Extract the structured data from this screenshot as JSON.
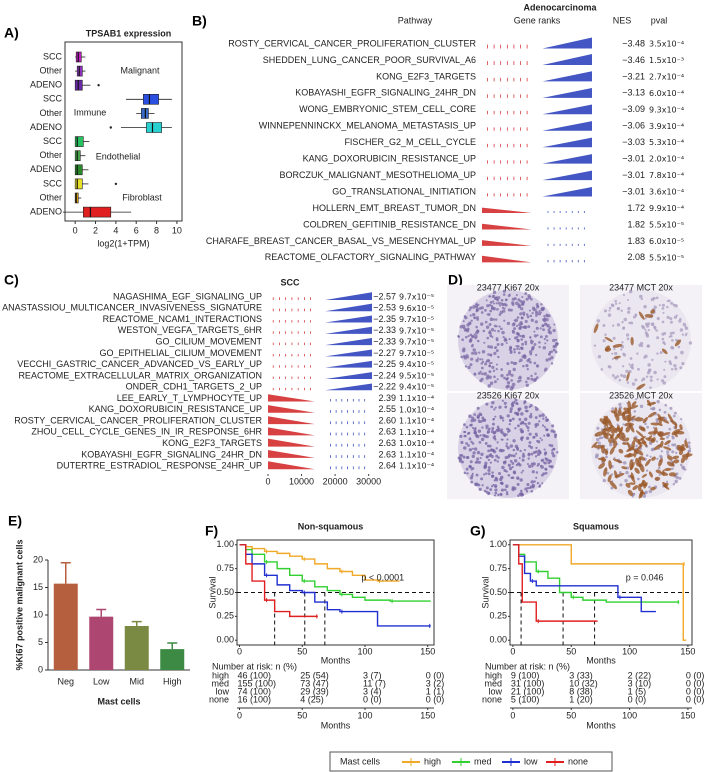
{
  "chart_data": [
    {
      "type": "box",
      "panel_label": "A)",
      "title": "TPSAB1 expression",
      "xlabel": "log2(1+TPM)",
      "xlim": [
        -1,
        10.5
      ],
      "xticks": [
        0,
        2,
        4,
        6,
        8,
        10
      ],
      "categories": [
        "SCC",
        "Other",
        "ADENO",
        "SCC",
        "Other",
        "ADENO",
        "SCC",
        "Other",
        "ADENO",
        "SCC",
        "Other",
        "ADENO"
      ],
      "groups": [
        "Malignant",
        "Immune",
        "Endothelial",
        "Fibroblast"
      ],
      "boxes": [
        {
          "whislo": 0,
          "q1": 0.1,
          "med": 0.3,
          "q3": 0.6,
          "whishi": 1.0,
          "color": "#c020c0",
          "fliers": []
        },
        {
          "whislo": 0,
          "q1": 0.2,
          "med": 0.4,
          "q3": 0.7,
          "whishi": 1.0,
          "color": "#9030c0",
          "fliers": []
        },
        {
          "whislo": 0,
          "q1": 0.0,
          "med": 0.3,
          "q3": 0.7,
          "whishi": 1.5,
          "color": "#6a2aa8",
          "fliers": [
            2.3
          ]
        },
        {
          "whislo": 5.0,
          "q1": 6.7,
          "med": 7.3,
          "q3": 8.2,
          "whishi": 9.5,
          "color": "#2a4ee0",
          "fliers": []
        },
        {
          "whislo": 6.0,
          "q1": 6.5,
          "med": 6.9,
          "q3": 7.2,
          "whishi": 7.8,
          "color": "#3a6ac8",
          "fliers": []
        },
        {
          "whislo": 4.5,
          "q1": 7.0,
          "med": 7.6,
          "q3": 8.5,
          "whishi": 9.5,
          "color": "#28d0d0",
          "fliers": [
            3.5
          ]
        },
        {
          "whislo": 0,
          "q1": 0.0,
          "med": 0.2,
          "q3": 0.8,
          "whishi": 1.4,
          "color": "#28c060",
          "fliers": []
        },
        {
          "whislo": 0,
          "q1": 0.0,
          "med": 0.2,
          "q3": 0.5,
          "whishi": 1.0,
          "color": "#48a848",
          "fliers": []
        },
        {
          "whislo": 0,
          "q1": 0.0,
          "med": 0.2,
          "q3": 0.7,
          "whishi": 1.3,
          "color": "#2a8a2a",
          "fliers": []
        },
        {
          "whislo": 0,
          "q1": 0.0,
          "med": 0.2,
          "q3": 0.7,
          "whishi": 1.3,
          "color": "#e6e028",
          "fliers": [
            4.0
          ]
        },
        {
          "whislo": 0,
          "q1": 0.0,
          "med": 0.1,
          "q3": 0.3,
          "whishi": 0.6,
          "color": "#e0a000",
          "fliers": []
        },
        {
          "whislo": -1.2,
          "q1": 0.8,
          "med": 1.5,
          "q3": 3.5,
          "whishi": 5.5,
          "color": "#e02020",
          "fliers": []
        }
      ]
    },
    {
      "type": "gsea",
      "panel_label": "B)",
      "title": "Adenocarcinoma",
      "headers": {
        "pathway": "Pathway",
        "ranks": "Gene ranks",
        "nes": "NES",
        "pval": "pval"
      },
      "neg_color": "#2338b8",
      "pos_color": "#d02020",
      "pathways": [
        "ROSTY_CERVICAL_CANCER_PROLIFERATION_CLUSTER",
        "SHEDDEN_LUNG_CANCER_POOR_SURVIVAL_A6",
        "KONG_E2F3_TARGETS",
        "KOBAYASHI_EGFR_SIGNALING_24HR_DN",
        "WONG_EMBRYONIC_STEM_CELL_CORE",
        "WINNEPENNINCKX_MELANOMA_METASTASIS_UP",
        "FISCHER_G2_M_CELL_CYCLE",
        "KANG_DOXORUBICIN_RESISTANCE_UP",
        "BORCZUK_MALIGNANT_MESOTHELIOMA_UP",
        "GO_TRANSLATIONAL_INITIATION",
        "HOLLERN_EMT_BREAST_TUMOR_DN",
        "COLDREN_GEFITINIB_RESISTANCE_DN",
        "CHARAFE_BREAST_CANCER_BASAL_VS_MESENCHYMAL_UP",
        "REACTOME_OLFACTORY_SIGNALING_PATHWAY"
      ],
      "nes": [
        -3.48,
        -3.46,
        -3.21,
        -3.13,
        -3.09,
        -3.06,
        -3.03,
        -3.01,
        -3.01,
        -3.01,
        1.72,
        1.82,
        1.83,
        2.08
      ],
      "nes_labels": [
        "−3.48",
        "−3.46",
        "−3.21",
        "−3.13",
        "−3.09",
        "−3.06",
        "−3.03",
        "−3.01",
        "−3.01",
        "−3.01",
        "1.72",
        "1.82",
        "1.83",
        "2.08"
      ],
      "pvals": [
        "3.5x10⁻⁴",
        "1.5x10⁻³",
        "2.7x10⁻⁴",
        "6.0x10⁻⁴",
        "9.3x10⁻⁴",
        "3.9x10⁻⁴",
        "5.3x10⁻⁴",
        "2.0x10⁻⁴",
        "7.8x10⁻⁴",
        "3.6x10⁻⁴",
        "9.9x10⁻⁴",
        "5.5x10⁻⁵",
        "6.0x10⁻⁵",
        "5.5x10⁻⁵"
      ]
    },
    {
      "type": "gsea",
      "panel_label": "C)",
      "title": "SCC",
      "neg_color": "#2338b8",
      "pos_color": "#d02020",
      "xlim": [
        0,
        31000
      ],
      "xticks": [
        0,
        10000,
        20000,
        30000
      ],
      "pathways": [
        "NAGASHIMA_EGF_SIGNALING_UP",
        "ANASTASSIOU_MULTICANCER_INVASIVENESS_SIGNATURE",
        "REACTOME_NCAM1_INTERACTIONS",
        "WESTON_VEGFA_TARGETS_6HR",
        "GO_CILIUM_MOVEMENT",
        "GO_EPITHELIAL_CILIUM_MOVEMENT",
        "VECCHI_GASTRIC_CANCER_ADVANCED_VS_EARLY_UP",
        "REACTOME_EXTRACELLULAR_MATRIX_ORGANIZATION",
        "ONDER_CDH1_TARGETS_2_UP",
        "LEE_EARLY_T_LYMPHOCYTE_UP",
        "KANG_DOXORUBICIN_RESISTANCE_UP",
        "ROSTY_CERVICAL_CANCER_PROLIFERATION_CLUSTER",
        "ZHOU_CELL_CYCLE_GENES_IN_IR_RESPONSE_6HR",
        "KONG_E2F3_TARGETS",
        "KOBAYASHI_EGFR_SIGNALING_24HR_DN",
        "DUTERTRE_ESTRADIOL_RESPONSE_24HR_UP"
      ],
      "nes": [
        -2.57,
        -2.53,
        -2.35,
        -2.33,
        -2.33,
        -2.27,
        -2.25,
        -2.24,
        -2.22,
        2.39,
        2.55,
        2.6,
        2.63,
        2.63,
        2.63,
        2.64
      ],
      "nes_labels": [
        "−2.57",
        "−2.53",
        "−2.35",
        "−2.33",
        "−2.33",
        "−2.27",
        "−2.25",
        "−2.24",
        "−2.22",
        "2.39",
        "2.55",
        "2.60",
        "2.63",
        "2.63",
        "2.63",
        "2.64"
      ],
      "pvals": [
        "9.7x10⁻⁵",
        "9.6x10⁻⁵",
        "9.7x10⁻⁵",
        "9.7x10⁻⁵",
        "9.7x10⁻⁵",
        "9.7x10⁻⁵",
        "9.4x10⁻⁵",
        "9.5x10⁻⁵",
        "9.4x10⁻⁵",
        "1.1x10⁻⁴",
        "1.0x10⁻⁴",
        "1.1x10⁻⁴",
        "1.1x10⁻⁴",
        "1.0x10⁻⁴",
        "1.1x10⁻⁴",
        "1.1x10⁻⁴"
      ]
    },
    {
      "type": "bar",
      "panel_label": "E)",
      "ylabel": "%Ki67 positive malignant cells",
      "xlabel": "Mast cells",
      "categories": [
        "Neg",
        "Low",
        "Mid",
        "High"
      ],
      "values": [
        15.7,
        9.7,
        8.0,
        3.8
      ],
      "errors": [
        3.8,
        1.3,
        0.8,
        1.1
      ],
      "colors": [
        "#b55f3e",
        "#ad4670",
        "#7b8a42",
        "#3d8a44"
      ],
      "ylim": [
        0,
        20
      ],
      "yticks": [
        0,
        5,
        10,
        15,
        20
      ]
    },
    {
      "type": "survival",
      "panel_label": "F)",
      "title": "Non-squamous",
      "p_label": "p < 0.0001",
      "ylabel": "Survival",
      "xlabel": "Months",
      "risk_title": "Number at risk: n (%)",
      "xlim": [
        -2,
        155
      ],
      "xticks": [
        0,
        50,
        100,
        150
      ],
      "ylim": [
        -0.05,
        1.05
      ],
      "yticks": [
        {
          "value": 0,
          "label": "0.00"
        },
        {
          "value": 0.25,
          "label": "0.25"
        },
        {
          "value": 0.5,
          "label": "0.50"
        },
        {
          "value": 0.75,
          "label": "0.75"
        },
        {
          "value": 1,
          "label": "1.00"
        }
      ],
      "median_line": 0.5,
      "medians": [
        28,
        52,
        68
      ],
      "series": [
        {
          "name": "high",
          "color": "#f0a828",
          "x": [
            0,
            5,
            10,
            20,
            30,
            40,
            50,
            60,
            70,
            80,
            90,
            100,
            110,
            125
          ],
          "values": [
            1,
            0.98,
            0.96,
            0.93,
            0.91,
            0.88,
            0.85,
            0.8,
            0.75,
            0.72,
            0.68,
            0.63,
            0.62,
            0.62
          ],
          "at_risk": [
            "46 (100)",
            "25 (54)",
            "3 (7)",
            "0 (0)"
          ]
        },
        {
          "name": "med",
          "color": "#30d030",
          "x": [
            0,
            5,
            10,
            20,
            30,
            40,
            50,
            60,
            70,
            80,
            90,
            100,
            120,
            150
          ],
          "values": [
            1,
            0.95,
            0.9,
            0.82,
            0.75,
            0.68,
            0.62,
            0.56,
            0.52,
            0.48,
            0.45,
            0.42,
            0.41,
            0.41
          ],
          "at_risk": [
            "155 (100)",
            "73 (47)",
            "11 (7)",
            "3 (2)"
          ]
        },
        {
          "name": "low",
          "color": "#2030d0",
          "x": [
            0,
            5,
            10,
            20,
            30,
            40,
            50,
            60,
            70,
            80,
            100,
            110,
            150
          ],
          "values": [
            1,
            0.9,
            0.8,
            0.68,
            0.58,
            0.52,
            0.5,
            0.4,
            0.32,
            0.3,
            0.3,
            0.15,
            0.15
          ],
          "at_risk": [
            "74 (100)",
            "29 (39)",
            "3 (4)",
            "1 (1)"
          ]
        },
        {
          "name": "none",
          "color": "#e02020",
          "x": [
            0,
            5,
            10,
            20,
            28,
            40,
            60
          ],
          "values": [
            1,
            0.8,
            0.62,
            0.42,
            0.3,
            0.25,
            0.25
          ],
          "at_risk": [
            "16 (100)",
            "4 (25)",
            "0 (0)",
            "0 (0)"
          ]
        }
      ]
    },
    {
      "type": "survival",
      "panel_label": "G)",
      "title": "Squamous",
      "p_label": "p = 0.046",
      "ylabel": "Survival",
      "xlabel": "Months",
      "risk_title": "Number at risk: n (%)",
      "xlim": [
        -2.5,
        153.5
      ],
      "xticks": [
        0,
        50,
        100,
        150
      ],
      "ylim": [
        -0.05,
        1.05
      ],
      "yticks": [
        {
          "value": 0,
          "label": "0.00"
        },
        {
          "value": 0.25,
          "label": "0.25"
        },
        {
          "value": 0.5,
          "label": "0.50"
        },
        {
          "value": 0.75,
          "label": "0.75"
        },
        {
          "value": 1,
          "label": "1.00"
        }
      ],
      "median_line": 0.5,
      "medians": [
        7,
        43,
        70
      ],
      "series": [
        {
          "name": "high",
          "color": "#f0a828",
          "x": [
            0,
            45,
            50,
            145,
            146
          ],
          "values": [
            1,
            1,
            0.8,
            0.8,
            0
          ],
          "at_risk": [
            "9 (100)",
            "3 (33)",
            "2 (22)",
            "0 (0)"
          ]
        },
        {
          "name": "med",
          "color": "#30d030",
          "x": [
            0,
            5,
            10,
            20,
            30,
            40,
            50,
            60,
            80,
            140
          ],
          "values": [
            1,
            0.9,
            0.82,
            0.72,
            0.65,
            0.5,
            0.45,
            0.42,
            0.4,
            0.4
          ],
          "at_risk": [
            "31 (100)",
            "10 (32)",
            "3 (10)",
            "0 (0)"
          ]
        },
        {
          "name": "low",
          "color": "#2030d0",
          "x": [
            0,
            5,
            10,
            15,
            20,
            70,
            90,
            110,
            120
          ],
          "values": [
            1,
            0.88,
            0.7,
            0.62,
            0.57,
            0.57,
            0.45,
            0.3,
            0.3
          ],
          "at_risk": [
            "21 (100)",
            "8 (38)",
            "1 (5)",
            "0 (0)"
          ]
        },
        {
          "name": "none",
          "color": "#e02020",
          "x": [
            0,
            5,
            8,
            20,
            30,
            70
          ],
          "values": [
            1,
            0.8,
            0.4,
            0.2,
            0.2,
            0.2
          ],
          "at_risk": [
            "5 (100)",
            "1 (20)",
            "0 (0)",
            "0 (0)"
          ]
        }
      ]
    }
  ],
  "images": {
    "panel_label": "D)",
    "captions": [
      "23477 Ki67 20x",
      "23477 MCT 20x",
      "23526 Ki67 20x",
      "23526 MCT 20x"
    ]
  },
  "legend": {
    "title": "Mast cells"
  }
}
